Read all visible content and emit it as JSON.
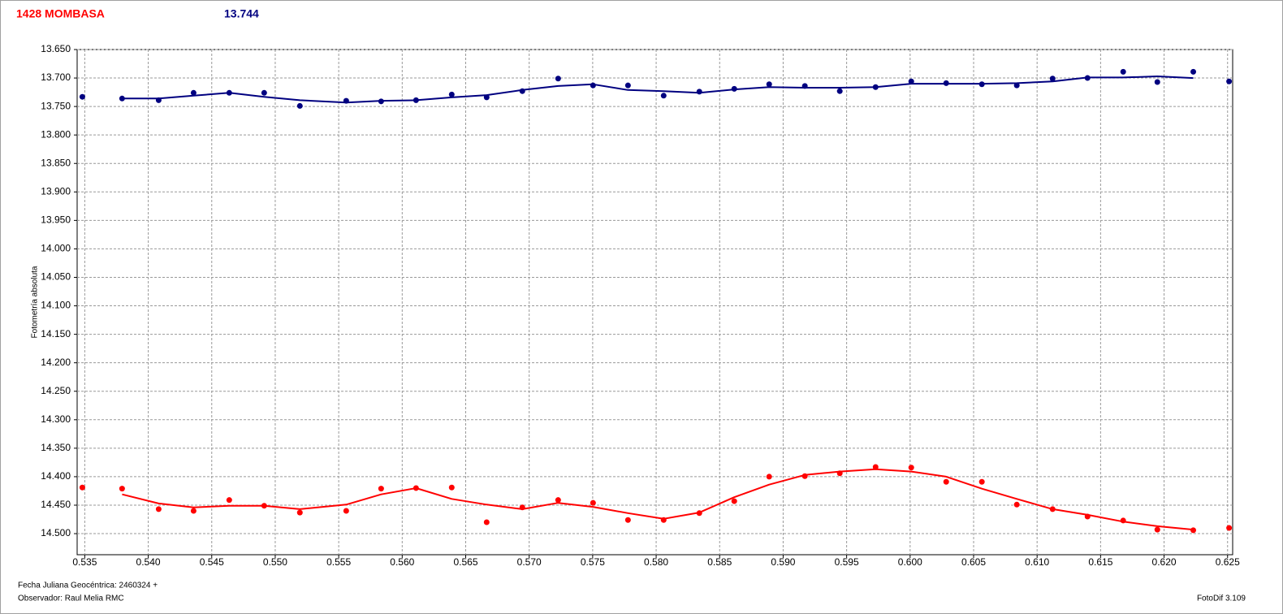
{
  "chart_data": {
    "type": "scatter",
    "title": "1428 MOMBASA",
    "subtitle": "13.744",
    "y_label": "Fotometría absoluta",
    "x_label": "Fecha Juliana Geocéntrica: 2460324 +",
    "observer": "Observador: Raul Melia RMC",
    "software": "FotoDif 3.109",
    "xlim": [
      0.5344,
      0.6254
    ],
    "ylim": [
      13.65,
      14.537
    ],
    "y_inverted": true,
    "grid": true,
    "xticks": [
      0.535,
      {
        "value": 0.54,
        "label": "0.540"
      },
      0.545,
      {
        "value": 0.55,
        "label": "0.550"
      },
      0.555,
      {
        "value": 0.56,
        "label": "0.560"
      },
      0.565,
      {
        "value": 0.57,
        "label": "0.570"
      },
      0.575,
      {
        "value": 0.58,
        "label": "0.580"
      },
      0.585,
      {
        "value": 0.59,
        "label": "0.590"
      },
      0.595,
      {
        "value": 0.6,
        "label": "0.600"
      },
      0.605,
      {
        "value": 0.61,
        "label": "0.610"
      },
      0.615,
      {
        "value": 0.62,
        "label": "0.620"
      },
      0.625
    ],
    "yticks": [
      {
        "value": 13.65,
        "label": "13.650"
      },
      {
        "value": 13.7,
        "label": "13.700"
      },
      {
        "value": 13.75,
        "label": "13.750"
      },
      {
        "value": 13.8,
        "label": "13.800"
      },
      {
        "value": 13.85,
        "label": "13.850"
      },
      {
        "value": 13.9,
        "label": "13.900"
      },
      {
        "value": 13.95,
        "label": "13.950"
      },
      {
        "value": 14,
        "label": "14.000"
      },
      {
        "value": 14.05,
        "label": "14.050"
      },
      {
        "value": 14.1,
        "label": "14.100"
      },
      {
        "value": 14.15,
        "label": "14.150"
      },
      {
        "value": 14.2,
        "label": "14.200"
      },
      {
        "value": 14.25,
        "label": "14.250"
      },
      {
        "value": 14.3,
        "label": "14.300"
      },
      {
        "value": 14.35,
        "label": "14.350"
      },
      {
        "value": 14.4,
        "label": "14.400"
      },
      {
        "value": 14.45,
        "label": "14.450"
      },
      {
        "value": 14.5,
        "label": "14.500"
      }
    ],
    "series": [
      {
        "style": "points",
        "color": "#000080",
        "x": [
          0.53481,
          0.53794,
          0.54082,
          0.54357,
          0.54638,
          0.54913,
          0.55194,
          0.55559,
          0.55834,
          0.56109,
          0.5639,
          0.56665,
          0.56946,
          0.57228,
          0.57503,
          0.57778,
          0.58059,
          0.5834,
          0.58615,
          0.5889,
          0.59171,
          0.59446,
          0.59728,
          0.60009,
          0.60284,
          0.60565,
          0.6084,
          0.61122,
          0.61397,
          0.61678,
          0.61947,
          0.6223,
          0.62512
        ],
        "values": [
          13.733,
          13.736,
          13.739,
          13.726,
          13.726,
          13.726,
          13.749,
          13.74,
          13.741,
          13.739,
          13.729,
          13.734,
          13.723,
          13.701,
          13.713,
          13.713,
          13.731,
          13.724,
          13.719,
          13.711,
          13.714,
          13.723,
          13.716,
          13.706,
          13.709,
          13.711,
          13.713,
          13.701,
          13.7,
          13.689,
          13.707,
          13.689,
          13.706
        ]
      },
      {
        "style": "line",
        "color": "#000080",
        "x": [
          0.53794,
          0.54082,
          0.54357,
          0.54638,
          0.54913,
          0.55194,
          0.55559,
          0.55834,
          0.56109,
          0.5639,
          0.56665,
          0.56946,
          0.57228,
          0.57503,
          0.57778,
          0.58059,
          0.5834,
          0.58615,
          0.5889,
          0.59171,
          0.59446,
          0.59728,
          0.60009,
          0.60284,
          0.60565,
          0.6084,
          0.61122,
          0.61397,
          0.61678,
          0.61947,
          0.6223
        ],
        "values": [
          13.736,
          13.736,
          13.731,
          13.726,
          13.733,
          13.739,
          13.743,
          13.74,
          13.739,
          13.734,
          13.73,
          13.721,
          13.714,
          13.711,
          13.721,
          13.723,
          13.726,
          13.72,
          13.716,
          13.717,
          13.717,
          13.716,
          13.71,
          13.71,
          13.71,
          13.709,
          13.706,
          13.699,
          13.699,
          13.697,
          13.7
        ]
      },
      {
        "style": "points",
        "color": "#ff0000",
        "x": [
          0.53481,
          0.53794,
          0.54082,
          0.54357,
          0.54638,
          0.54913,
          0.55194,
          0.55559,
          0.55834,
          0.56109,
          0.5639,
          0.56665,
          0.56946,
          0.57228,
          0.57503,
          0.57778,
          0.58059,
          0.5834,
          0.58615,
          0.5889,
          0.59171,
          0.59446,
          0.59728,
          0.60009,
          0.60284,
          0.60565,
          0.6084,
          0.61122,
          0.61397,
          0.61678,
          0.61947,
          0.6223,
          0.62512
        ],
        "values": [
          14.419,
          14.421,
          14.457,
          14.46,
          14.441,
          14.451,
          14.463,
          14.46,
          14.421,
          14.42,
          14.419,
          14.48,
          14.454,
          14.441,
          14.446,
          14.476,
          14.476,
          14.464,
          14.443,
          14.4,
          14.399,
          14.394,
          14.383,
          14.384,
          14.409,
          14.409,
          14.449,
          14.457,
          14.47,
          14.477,
          14.493,
          14.494,
          14.49
        ]
      },
      {
        "style": "line",
        "color": "#ff0000",
        "x": [
          0.53794,
          0.54082,
          0.54357,
          0.54638,
          0.54913,
          0.55194,
          0.55559,
          0.55834,
          0.56109,
          0.5639,
          0.56665,
          0.56946,
          0.57228,
          0.57503,
          0.57778,
          0.58059,
          0.5834,
          0.58615,
          0.5889,
          0.59171,
          0.59446,
          0.59728,
          0.60009,
          0.60284,
          0.60565,
          0.6084,
          0.61122,
          0.61397,
          0.61678,
          0.61947,
          0.6223
        ],
        "values": [
          14.431,
          14.447,
          14.454,
          14.451,
          14.451,
          14.457,
          14.449,
          14.431,
          14.42,
          14.439,
          14.449,
          14.457,
          14.446,
          14.453,
          14.464,
          14.474,
          14.463,
          14.436,
          14.414,
          14.397,
          14.391,
          14.387,
          14.391,
          14.4,
          14.421,
          14.439,
          14.457,
          14.467,
          14.479,
          14.487,
          14.493
        ]
      }
    ]
  }
}
